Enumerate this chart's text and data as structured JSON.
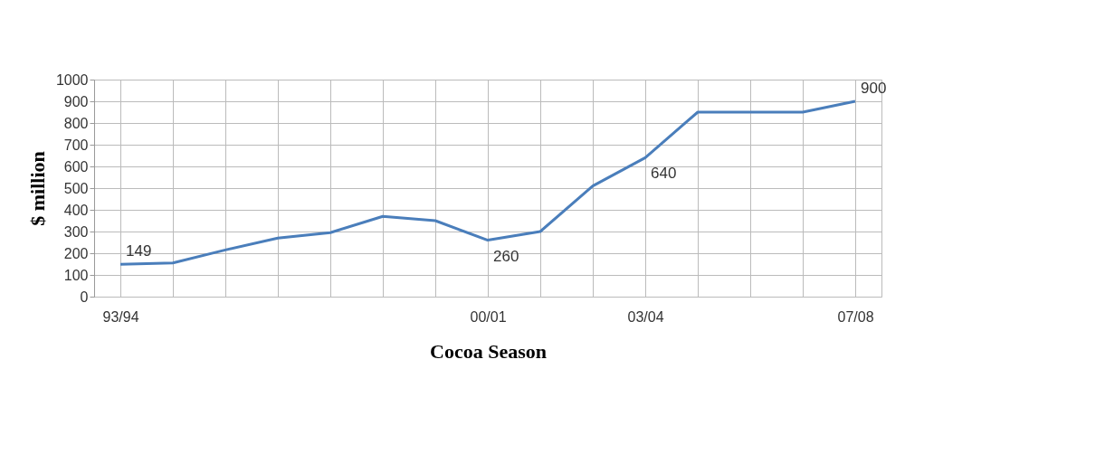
{
  "chart_data": {
    "type": "line",
    "xlabel": "Cocoa Season",
    "ylabel": "$ million",
    "categories": [
      "93/94",
      null,
      null,
      null,
      null,
      null,
      null,
      "00/01",
      null,
      null,
      "03/04",
      null,
      null,
      null,
      "07/08"
    ],
    "series": [
      {
        "color": "#4a7ebb",
        "values": [
          149,
          155,
          215,
          270,
          295,
          370,
          350,
          260,
          300,
          510,
          640,
          850,
          850,
          850,
          900
        ],
        "value_labels": [
          "149",
          null,
          null,
          null,
          null,
          null,
          null,
          "260",
          null,
          null,
          "640",
          null,
          null,
          null,
          "900"
        ]
      }
    ],
    "ylim": [
      0,
      1000
    ],
    "yticks": [
      0,
      100,
      200,
      300,
      400,
      500,
      600,
      700,
      800,
      900,
      1000
    ],
    "grid": true,
    "marker": "none",
    "line_style": "solid"
  }
}
